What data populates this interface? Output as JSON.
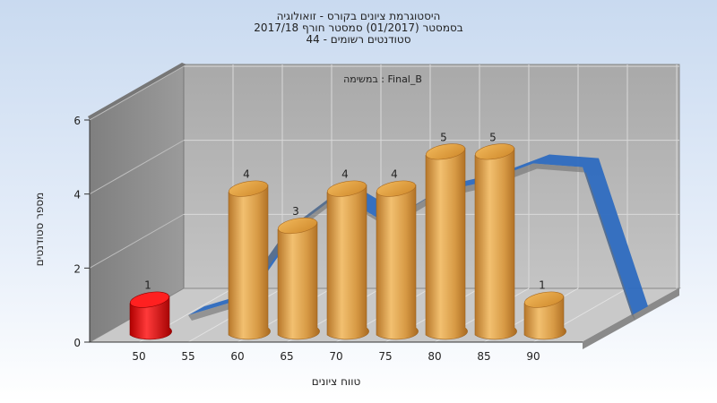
{
  "chart_data": {
    "type": "bar",
    "title_lines": [
      "היסטוגרמת ציונים בקורס - זואולוגיה",
      "בסמסטר  (01/2017)  סמסטר חורף 2017/18",
      "סטודנטים רשומים - 44"
    ],
    "subtitle": "במשימה : Final_B",
    "xlabel": "טווח ציונים",
    "ylabel": "מספר סטודנטים",
    "x_ticks": [
      "50",
      "55",
      "60",
      "65",
      "70",
      "75",
      "80",
      "85",
      "90"
    ],
    "y_ticks": [
      "0",
      "2",
      "4",
      "6"
    ],
    "ylim": [
      0,
      6
    ],
    "grid": true,
    "bars": [
      {
        "x": 50,
        "value": 1,
        "label": "1",
        "highlight": true
      },
      {
        "x": 60,
        "value": 4,
        "label": "4"
      },
      {
        "x": 65,
        "value": 3,
        "label": "3"
      },
      {
        "x": 70,
        "value": 4,
        "label": "4"
      },
      {
        "x": 75,
        "value": 4,
        "label": "4"
      },
      {
        "x": 80,
        "value": 5,
        "label": "5"
      },
      {
        "x": 85,
        "value": 5,
        "label": "5"
      },
      {
        "x": 90,
        "value": 1,
        "label": "1"
      }
    ],
    "trend_line": {
      "type": "line",
      "x": [
        50,
        55,
        60,
        65,
        70,
        75,
        80,
        85,
        90,
        95
      ],
      "values": [
        0,
        0.4,
        2.3,
        3.3,
        2.5,
        3.3,
        3.6,
        4.1,
        4.0,
        0
      ]
    },
    "colors": {
      "bar": "#d99a3c",
      "bar_highlight": "#d81010",
      "trend": "#2e6bc0",
      "background_top": "#c9daf0",
      "background_bottom": "#ffffff"
    }
  }
}
